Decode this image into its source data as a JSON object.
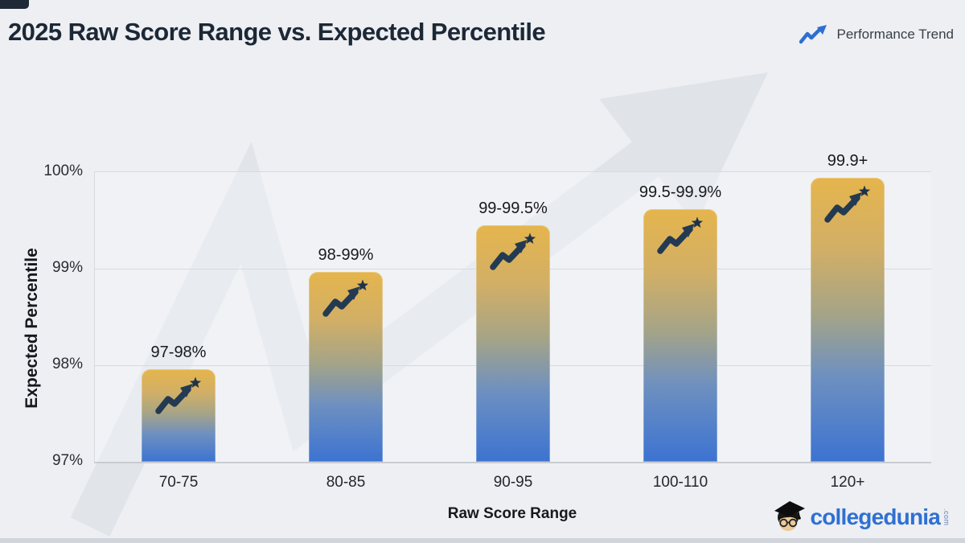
{
  "page": {
    "background": "#edeff3"
  },
  "header": {
    "title": "2025 Raw Score Range vs. Expected Percentile",
    "legend": {
      "label": "Performance Trend",
      "icon": "trend-arrow-icon",
      "icon_color": "#2e6ed2"
    }
  },
  "chart_data": {
    "type": "bar",
    "title": "2025 Raw Score Range vs. Expected Percentile",
    "xlabel": "Raw Score Range",
    "ylabel": "Expected Percentile",
    "categories": [
      "70-75",
      "80-85",
      "90-95",
      "100-110",
      "120+"
    ],
    "values": [
      97.96,
      98.97,
      99.45,
      99.62,
      99.94
    ],
    "bar_labels": [
      "97-98%",
      "98-99%",
      "99-99.5%",
      "99.5-99.9%",
      "99.9+"
    ],
    "y_ticks": [
      "100%",
      "99%",
      "98%",
      "97%"
    ],
    "ylim": [
      97,
      100
    ],
    "grid": true,
    "legend_label": "Performance Trend",
    "legend_position": "top-right",
    "bar_icon": "trend-arrow-star-icon",
    "colors": {
      "bar_gradient_top": "#e5b54d",
      "bar_gradient_mid": "#a5a487",
      "bar_gradient_lower": "#6e90c0",
      "bar_gradient_bottom": "#3c73d1",
      "bar_icon_color": "#233a52",
      "legend_icon_color": "#2e6ed2",
      "gridline_color": "#d7dade",
      "watermark_color": "#d7dae0"
    }
  },
  "branding": {
    "name": "collegedunia",
    "suffix": ".com",
    "color": "#2f70d2",
    "icon": "graduate-mascot-icon"
  }
}
